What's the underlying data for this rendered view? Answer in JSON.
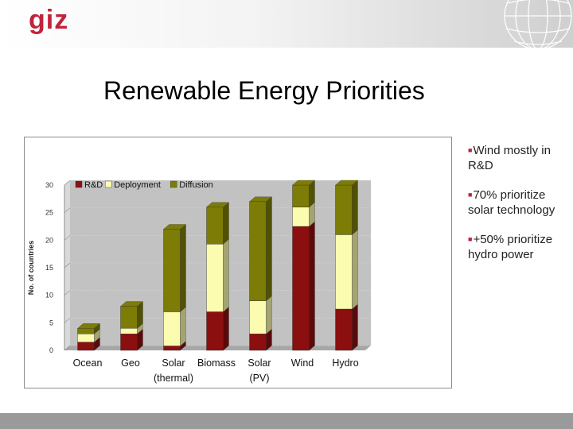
{
  "header": {
    "logo_text": "giz"
  },
  "slide": {
    "title": "Renewable Energy Priorities"
  },
  "bullets": [
    "Wind mostly in R&D",
    "70% prioritize solar technology",
    "+50% prioritize hydro power"
  ],
  "colors": {
    "rd": "#8b0f0f",
    "deployment": "#fcfcb0",
    "diffusion": "#7c7c06",
    "accent": "#c0243a"
  },
  "chart_data": {
    "type": "bar",
    "stacked": true,
    "ylabel": "No. of countries",
    "ylim": [
      0,
      30
    ],
    "yticks": [
      0,
      5,
      10,
      15,
      20,
      25,
      30
    ],
    "legend_position": "top-left",
    "categories": [
      [
        "Ocean"
      ],
      [
        "Geo"
      ],
      [
        "Solar",
        "(thermal)"
      ],
      [
        "Biomass"
      ],
      [
        "Solar",
        "(PV)"
      ],
      [
        "Wind"
      ],
      [
        "Hydro"
      ]
    ],
    "series": [
      {
        "name": "R&D",
        "color": "#8b0f0f",
        "values": [
          1.5,
          3,
          0.8,
          7,
          3,
          22.5,
          7.5
        ]
      },
      {
        "name": "Deployment",
        "color": "#fcfcb0",
        "values": [
          1.5,
          1,
          6.2,
          12.3,
          6,
          3.5,
          13.5
        ]
      },
      {
        "name": "Diffusion",
        "color": "#7c7c06",
        "values": [
          1,
          4,
          15,
          6.7,
          18,
          4,
          9
        ]
      }
    ]
  }
}
